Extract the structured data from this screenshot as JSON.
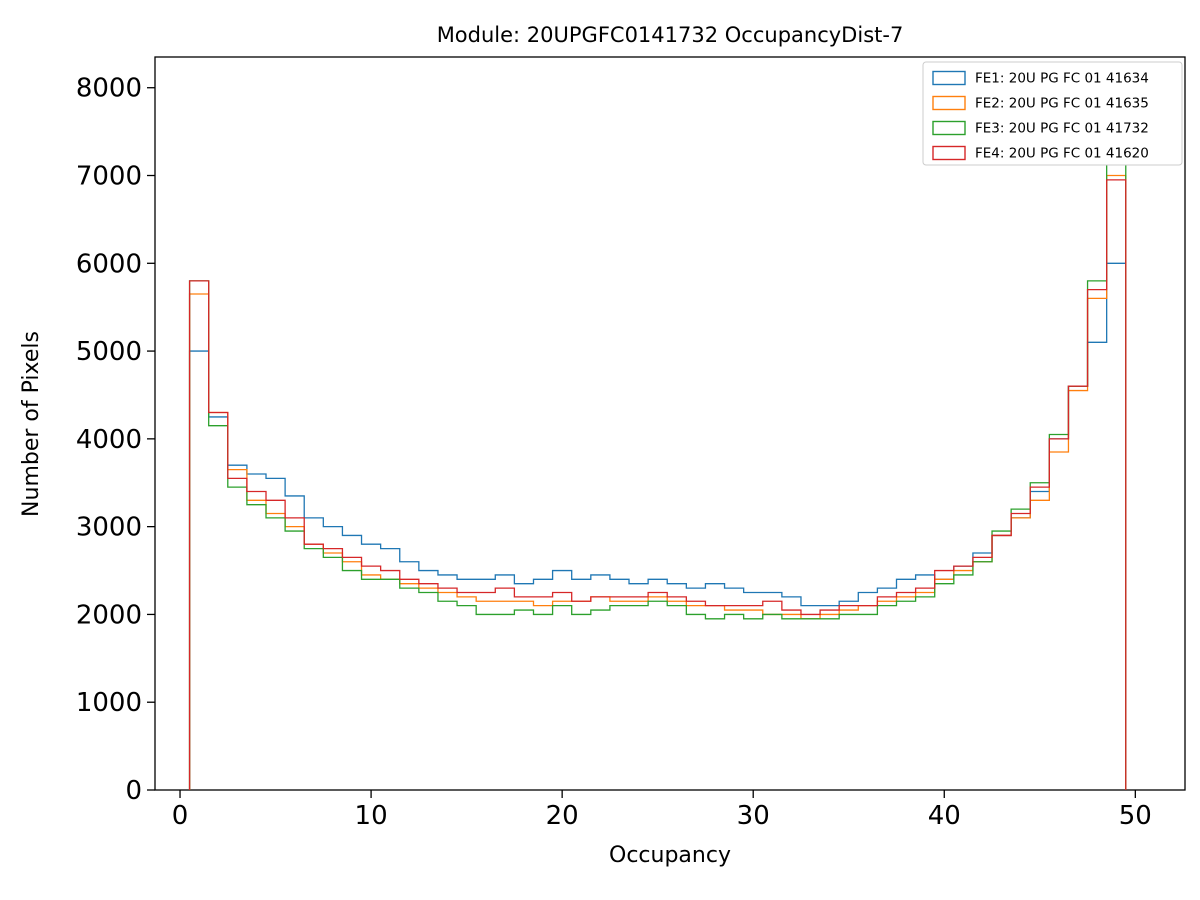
{
  "figure": {
    "background": "#ffffff",
    "frame_color": "#000000",
    "legend_border_color": "#cccccc"
  },
  "chart_data": {
    "type": "line",
    "style": "step-histogram",
    "title": "Module: 20UPGFC0141732 OccupancyDist-7",
    "xlabel": "Occupancy",
    "ylabel": "Number of Pixels",
    "xlim": [
      -1.31,
      52.6
    ],
    "ylim": [
      0,
      8350
    ],
    "xticks": [
      0,
      10,
      20,
      30,
      40,
      50
    ],
    "yticks": [
      0,
      1000,
      2000,
      3000,
      4000,
      5000,
      6000,
      7000,
      8000
    ],
    "bin_start": 0.5,
    "bin_width": 1,
    "grid": false,
    "legend_position": "upper right",
    "series": [
      {
        "name": "FE1: 20U PG FC 01 41634",
        "color": "#1f77b4",
        "values": [
          5000,
          4250,
          3700,
          3600,
          3550,
          3350,
          3100,
          3000,
          2900,
          2800,
          2750,
          2600,
          2500,
          2450,
          2400,
          2400,
          2450,
          2350,
          2400,
          2500,
          2400,
          2450,
          2400,
          2350,
          2400,
          2350,
          2300,
          2350,
          2300,
          2250,
          2250,
          2200,
          2100,
          2100,
          2150,
          2250,
          2300,
          2400,
          2450,
          2400,
          2550,
          2700,
          2900,
          3100,
          3400,
          4000,
          4600,
          5100,
          6000
        ]
      },
      {
        "name": "FE2: 20U PG FC 01 41635",
        "color": "#ff7f0e",
        "values": [
          5650,
          4300,
          3650,
          3300,
          3150,
          3000,
          2800,
          2700,
          2600,
          2450,
          2400,
          2350,
          2300,
          2250,
          2200,
          2150,
          2150,
          2150,
          2100,
          2150,
          2150,
          2200,
          2150,
          2150,
          2200,
          2150,
          2100,
          2100,
          2050,
          2050,
          2000,
          2000,
          1950,
          2000,
          2050,
          2100,
          2150,
          2200,
          2250,
          2400,
          2500,
          2600,
          2900,
          3100,
          3300,
          3850,
          4550,
          5600,
          7000
        ]
      },
      {
        "name": "FE3: 20U PG FC 01 41732",
        "color": "#2ca02c",
        "values": [
          5800,
          4150,
          3450,
          3250,
          3100,
          2950,
          2750,
          2650,
          2500,
          2400,
          2400,
          2300,
          2250,
          2150,
          2100,
          2000,
          2000,
          2050,
          2000,
          2100,
          2000,
          2050,
          2100,
          2100,
          2150,
          2100,
          2000,
          1950,
          2000,
          1950,
          2000,
          1950,
          1950,
          1950,
          2000,
          2000,
          2100,
          2150,
          2200,
          2350,
          2450,
          2600,
          2950,
          3200,
          3500,
          4050,
          4600,
          5800,
          7200
        ]
      },
      {
        "name": "FE4: 20U PG FC 01 41620",
        "color": "#d62728",
        "values": [
          5800,
          4300,
          3550,
          3400,
          3300,
          3100,
          2800,
          2750,
          2650,
          2550,
          2500,
          2400,
          2350,
          2300,
          2250,
          2250,
          2300,
          2200,
          2200,
          2250,
          2150,
          2200,
          2200,
          2200,
          2250,
          2200,
          2150,
          2100,
          2100,
          2100,
          2150,
          2050,
          2000,
          2050,
          2100,
          2100,
          2200,
          2250,
          2300,
          2500,
          2550,
          2650,
          2900,
          3150,
          3450,
          4000,
          4600,
          5700,
          6950
        ]
      }
    ]
  }
}
